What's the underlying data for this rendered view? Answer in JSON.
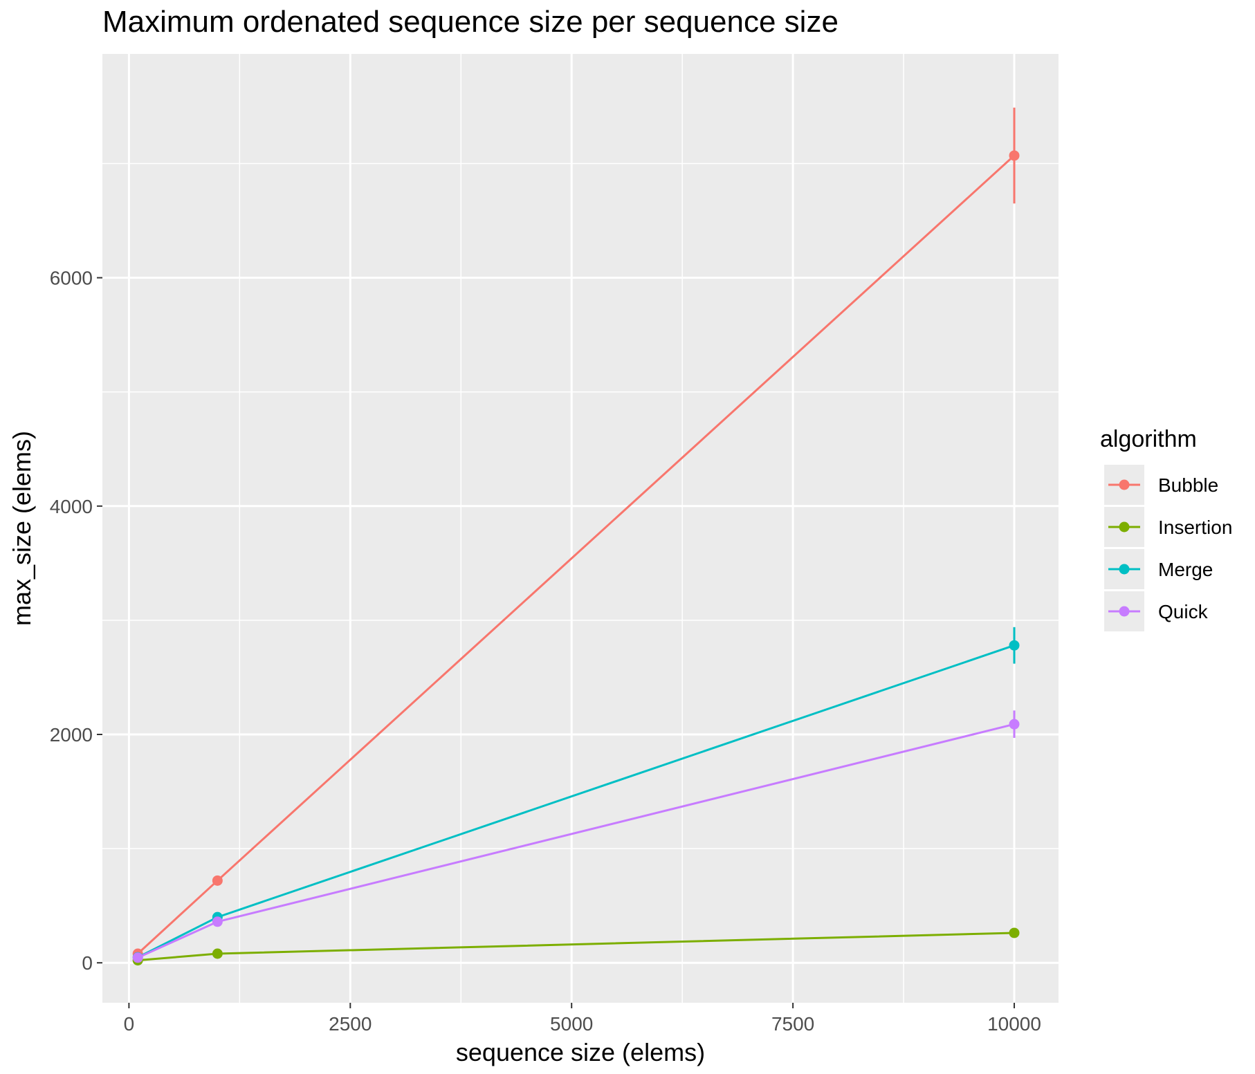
{
  "chart_data": {
    "type": "line",
    "title": "Maximum ordenated sequence size per sequence size",
    "xlabel": "sequence size (elems)",
    "ylabel": "max_size (elems)",
    "xlim": [
      -300,
      10500
    ],
    "ylim": [
      -350,
      7960
    ],
    "x_ticks": [
      0,
      2500,
      5000,
      7500,
      10000
    ],
    "x_tick_labels": [
      "0",
      "2500",
      "5000",
      "7500",
      "10000"
    ],
    "y_ticks": [
      0,
      2000,
      4000,
      6000
    ],
    "y_tick_labels": [
      "0",
      "2000",
      "4000",
      "6000"
    ],
    "grid": true,
    "legend": {
      "title": "algorithm",
      "position": "right"
    },
    "x": [
      100,
      1000,
      10000
    ],
    "series": [
      {
        "name": "Bubble",
        "color": "#F8766D",
        "values": [
          80,
          720,
          7070
        ],
        "error": [
          null,
          null,
          420
        ]
      },
      {
        "name": "Insertion",
        "color": "#7CAE00",
        "values": [
          22,
          80,
          262
        ],
        "error": [
          null,
          null,
          null
        ]
      },
      {
        "name": "Merge",
        "color": "#00BFC4",
        "values": [
          48,
          400,
          2780
        ],
        "error": [
          null,
          null,
          160
        ]
      },
      {
        "name": "Quick",
        "color": "#C77CFF",
        "values": [
          45,
          360,
          2090
        ],
        "error": [
          null,
          null,
          120
        ]
      }
    ]
  }
}
